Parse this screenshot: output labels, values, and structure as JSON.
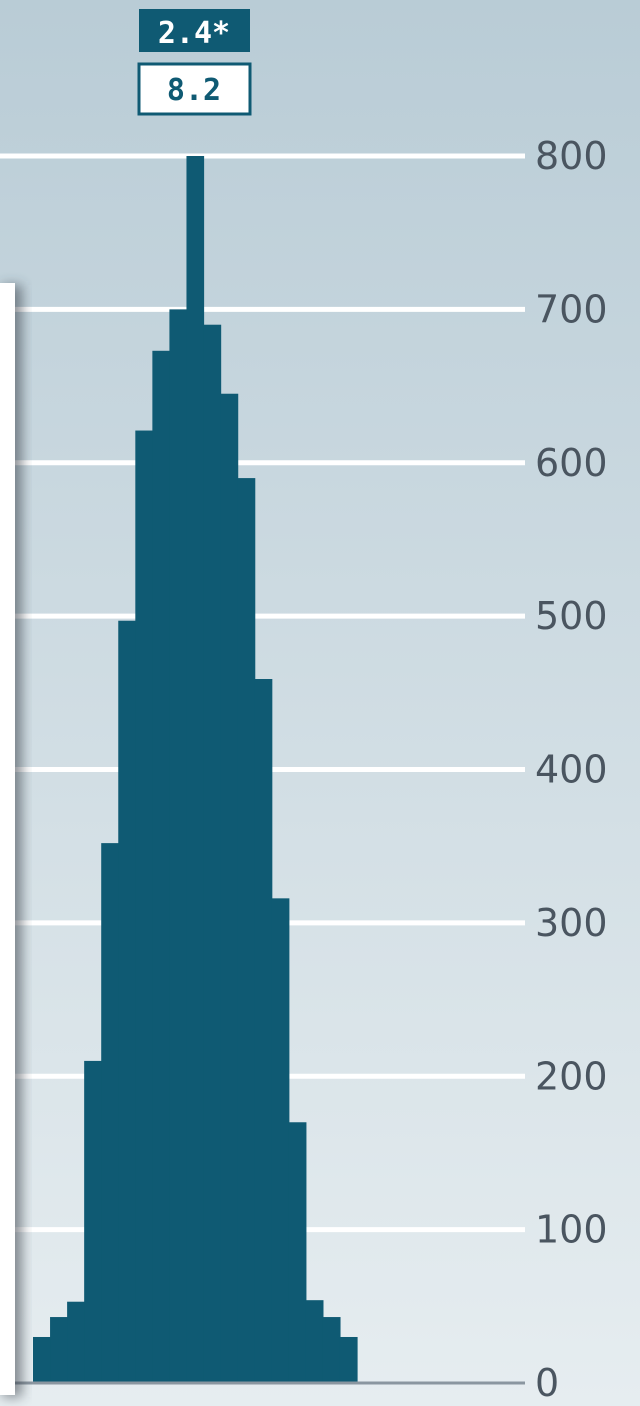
{
  "chart_data": {
    "type": "area",
    "ylim": [
      0,
      830
    ],
    "y_ticks": [
      "0",
      "100",
      "200",
      "300",
      "400",
      "500",
      "600",
      "700",
      "800"
    ],
    "y_tick_values": [
      0,
      100,
      200,
      300,
      400,
      500,
      600,
      700,
      800
    ],
    "grid": true,
    "annotation": {
      "top": "2.4*",
      "bottom": "8.2"
    },
    "series": [
      {
        "profile": [
          {
            "x": 0,
            "y": 30
          },
          {
            "x": 1,
            "y": 43
          },
          {
            "x": 2,
            "y": 53
          },
          {
            "x": 3,
            "y": 210
          },
          {
            "x": 4,
            "y": 352
          },
          {
            "x": 5,
            "y": 497
          },
          {
            "x": 6,
            "y": 621
          },
          {
            "x": 7,
            "y": 673
          },
          {
            "x": 8,
            "y": 700
          },
          {
            "x": 9,
            "y": 800
          },
          {
            "x": 10,
            "y": 690
          },
          {
            "x": 11,
            "y": 645
          },
          {
            "x": 12,
            "y": 590
          },
          {
            "x": 13,
            "y": 459
          },
          {
            "x": 14,
            "y": 316
          },
          {
            "x": 15,
            "y": 170
          },
          {
            "x": 16,
            "y": 54
          },
          {
            "x": 17,
            "y": 43
          },
          {
            "x": 18,
            "y": 30
          }
        ]
      }
    ]
  },
  "colors": {
    "bar": "#0f5a73",
    "background_top": "#b9ccd6",
    "background_bottom": "#e6edf0",
    "grid": "#ffffff",
    "axis": "#8a96a0",
    "inset_panel": "#ffffff"
  }
}
